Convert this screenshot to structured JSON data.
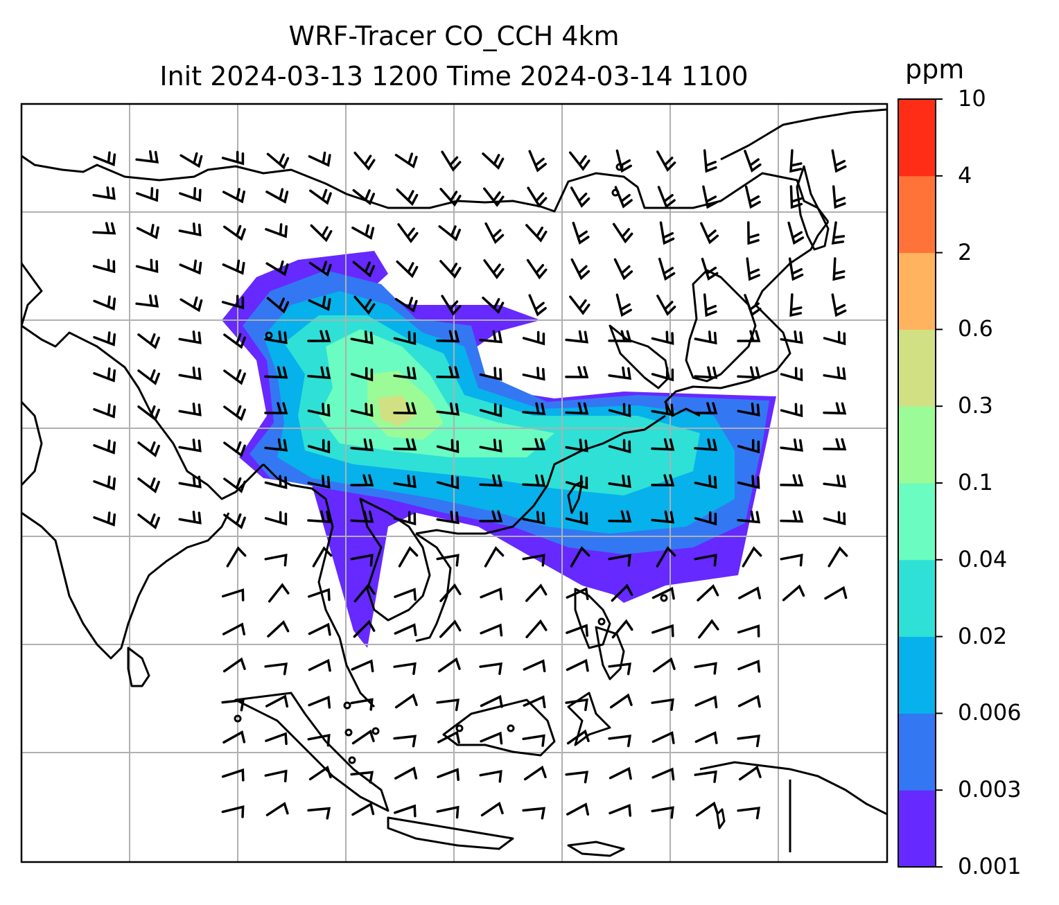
{
  "title": {
    "line1": "WRF-Tracer CO_CCH 4km",
    "line2": "Init 2024-03-13 1200 Time 2024-03-14 1100"
  },
  "colorbar": {
    "unit": "ppm",
    "levels": [
      "0.001",
      "0.003",
      "0.006",
      "0.02",
      "0.04",
      "0.1",
      "0.3",
      "0.6",
      "2",
      "4",
      "10"
    ],
    "colors": [
      "#6629ff",
      "#3477f2",
      "#07b1eb",
      "#2fe0d6",
      "#6afcc0",
      "#9afb97",
      "#d2e084",
      "#ffb35f",
      "#ff7338",
      "#ff2d16"
    ]
  },
  "map": {
    "field": "CO_CCH tracer concentration at 4km",
    "overlay": "wind barbs",
    "gridlines": true
  }
}
